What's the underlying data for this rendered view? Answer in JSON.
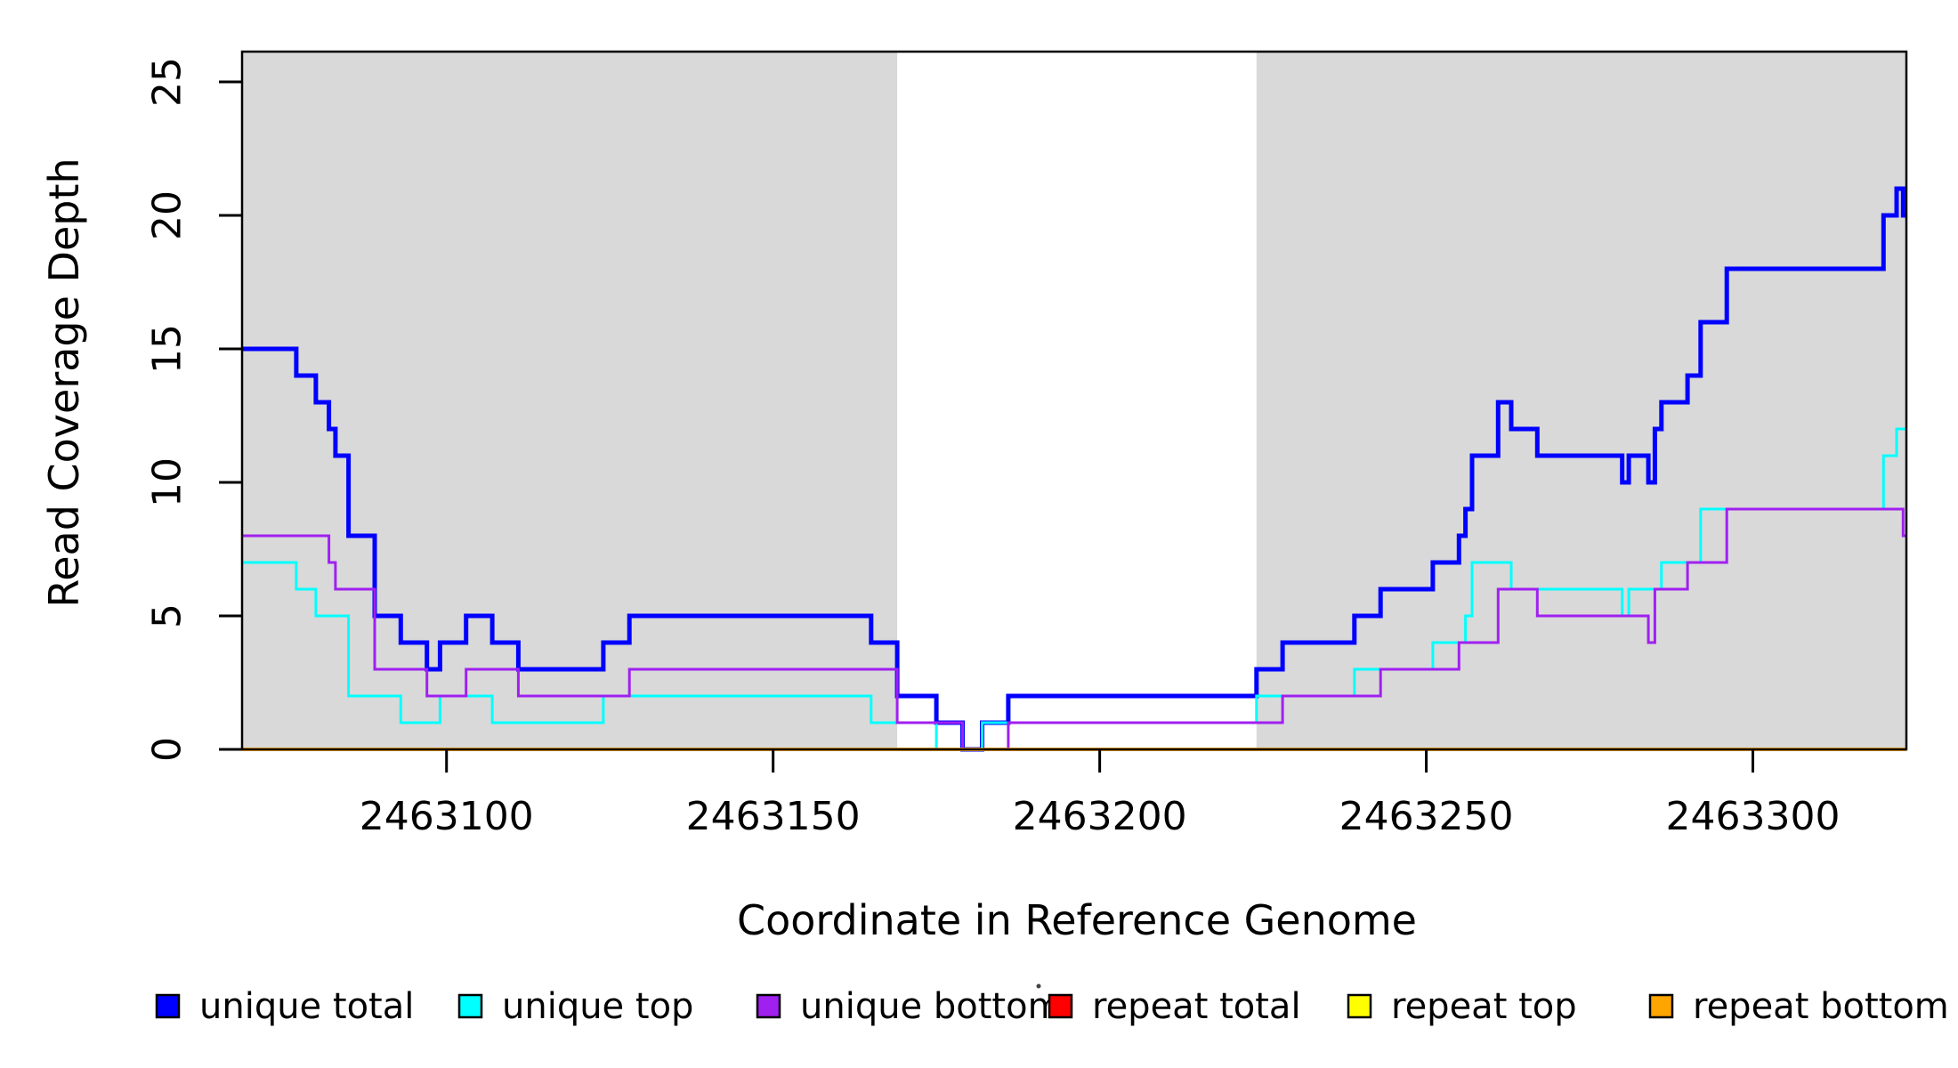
{
  "chart_data": {
    "type": "line",
    "subtype": "step-coverage",
    "title": "",
    "xlabel": "Coordinate in Reference Genome",
    "ylabel": "Read Coverage Depth",
    "xlim": [
      2463068.7,
      2463323.5
    ],
    "ylim": [
      0,
      26.1
    ],
    "x_ticks": [
      2463100,
      2463150,
      2463200,
      2463250,
      2463300
    ],
    "y_ticks": [
      0,
      5,
      10,
      15,
      20,
      25
    ],
    "grid": false,
    "background_color": "#ffffff",
    "shaded_region_color": "#D9D9D9",
    "shaded_regions": [
      {
        "name": "unique-region-left",
        "from": 2463068.7,
        "to": 2463169
      },
      {
        "name": "unique-region-right",
        "from": 2463224,
        "to": 2463323.5
      }
    ],
    "legend_position": "bottom",
    "series": [
      {
        "name": "unique total",
        "color": "#0000FF",
        "line_width": 5,
        "steps": [
          [
            2463069,
            15
          ],
          [
            2463077,
            14
          ],
          [
            2463080,
            13
          ],
          [
            2463082,
            12
          ],
          [
            2463083,
            11
          ],
          [
            2463085,
            8
          ],
          [
            2463089,
            5
          ],
          [
            2463093,
            4
          ],
          [
            2463097,
            3
          ],
          [
            2463099,
            4
          ],
          [
            2463103,
            5
          ],
          [
            2463107,
            4
          ],
          [
            2463111,
            3
          ],
          [
            2463124,
            4
          ],
          [
            2463128,
            5
          ],
          [
            2463165,
            4
          ],
          [
            2463169,
            2
          ],
          [
            2463175,
            1
          ],
          [
            2463179,
            0
          ],
          [
            2463182,
            1
          ],
          [
            2463186,
            2
          ],
          [
            2463224,
            3
          ],
          [
            2463228,
            4
          ],
          [
            2463239,
            5
          ],
          [
            2463243,
            6
          ],
          [
            2463251,
            7
          ],
          [
            2463255,
            8
          ],
          [
            2463256,
            9
          ],
          [
            2463257,
            11
          ],
          [
            2463261,
            13
          ],
          [
            2463263,
            12
          ],
          [
            2463267,
            11
          ],
          [
            2463280,
            10
          ],
          [
            2463281,
            11
          ],
          [
            2463284,
            10
          ],
          [
            2463285,
            12
          ],
          [
            2463286,
            13
          ],
          [
            2463290,
            14
          ],
          [
            2463292,
            16
          ],
          [
            2463296,
            18
          ],
          [
            2463320,
            20
          ],
          [
            2463322,
            21
          ],
          [
            2463323,
            20
          ]
        ]
      },
      {
        "name": "unique top",
        "color": "#00FFFF",
        "line_width": 3,
        "steps": [
          [
            2463069,
            7
          ],
          [
            2463077,
            6
          ],
          [
            2463080,
            5
          ],
          [
            2463085,
            2
          ],
          [
            2463093,
            1
          ],
          [
            2463099,
            2
          ],
          [
            2463107,
            1
          ],
          [
            2463124,
            2
          ],
          [
            2463165,
            1
          ],
          [
            2463175,
            0
          ],
          [
            2463182,
            1
          ],
          [
            2463224,
            2
          ],
          [
            2463239,
            3
          ],
          [
            2463251,
            4
          ],
          [
            2463256,
            5
          ],
          [
            2463257,
            7
          ],
          [
            2463263,
            6
          ],
          [
            2463280,
            5
          ],
          [
            2463281,
            6
          ],
          [
            2463286,
            7
          ],
          [
            2463292,
            9
          ],
          [
            2463320,
            11
          ],
          [
            2463322,
            12
          ]
        ]
      },
      {
        "name": "unique bottom",
        "color": "#A020F0",
        "line_width": 3,
        "steps": [
          [
            2463069,
            8
          ],
          [
            2463082,
            7
          ],
          [
            2463083,
            6
          ],
          [
            2463089,
            3
          ],
          [
            2463097,
            2
          ],
          [
            2463103,
            3
          ],
          [
            2463111,
            2
          ],
          [
            2463128,
            3
          ],
          [
            2463169,
            1
          ],
          [
            2463179,
            0
          ],
          [
            2463186,
            1
          ],
          [
            2463228,
            2
          ],
          [
            2463243,
            3
          ],
          [
            2463255,
            4
          ],
          [
            2463261,
            6
          ],
          [
            2463267,
            5
          ],
          [
            2463284,
            4
          ],
          [
            2463285,
            6
          ],
          [
            2463290,
            7
          ],
          [
            2463296,
            9
          ],
          [
            2463323,
            8
          ]
        ]
      },
      {
        "name": "repeat total",
        "color": "#FF0000",
        "line_width": 3,
        "steps": [
          [
            2463069,
            0
          ]
        ]
      },
      {
        "name": "repeat top",
        "color": "#FFFF00",
        "line_width": 3,
        "steps": [
          [
            2463069,
            0
          ]
        ]
      },
      {
        "name": "repeat bottom",
        "color": "#FFA500",
        "line_width": 4,
        "steps": [
          [
            2463069,
            0
          ]
        ]
      }
    ],
    "legend": [
      {
        "label": "unique total",
        "color": "#0000FF"
      },
      {
        "label": "unique top",
        "color": "#00FFFF"
      },
      {
        "label": "unique bottom",
        "color": "#A020F0"
      },
      {
        "label": "repeat total",
        "color": "#FF0000"
      },
      {
        "label": "repeat top",
        "color": "#FFFF00"
      },
      {
        "label": "repeat bottom",
        "color": "#FFA500"
      }
    ]
  }
}
